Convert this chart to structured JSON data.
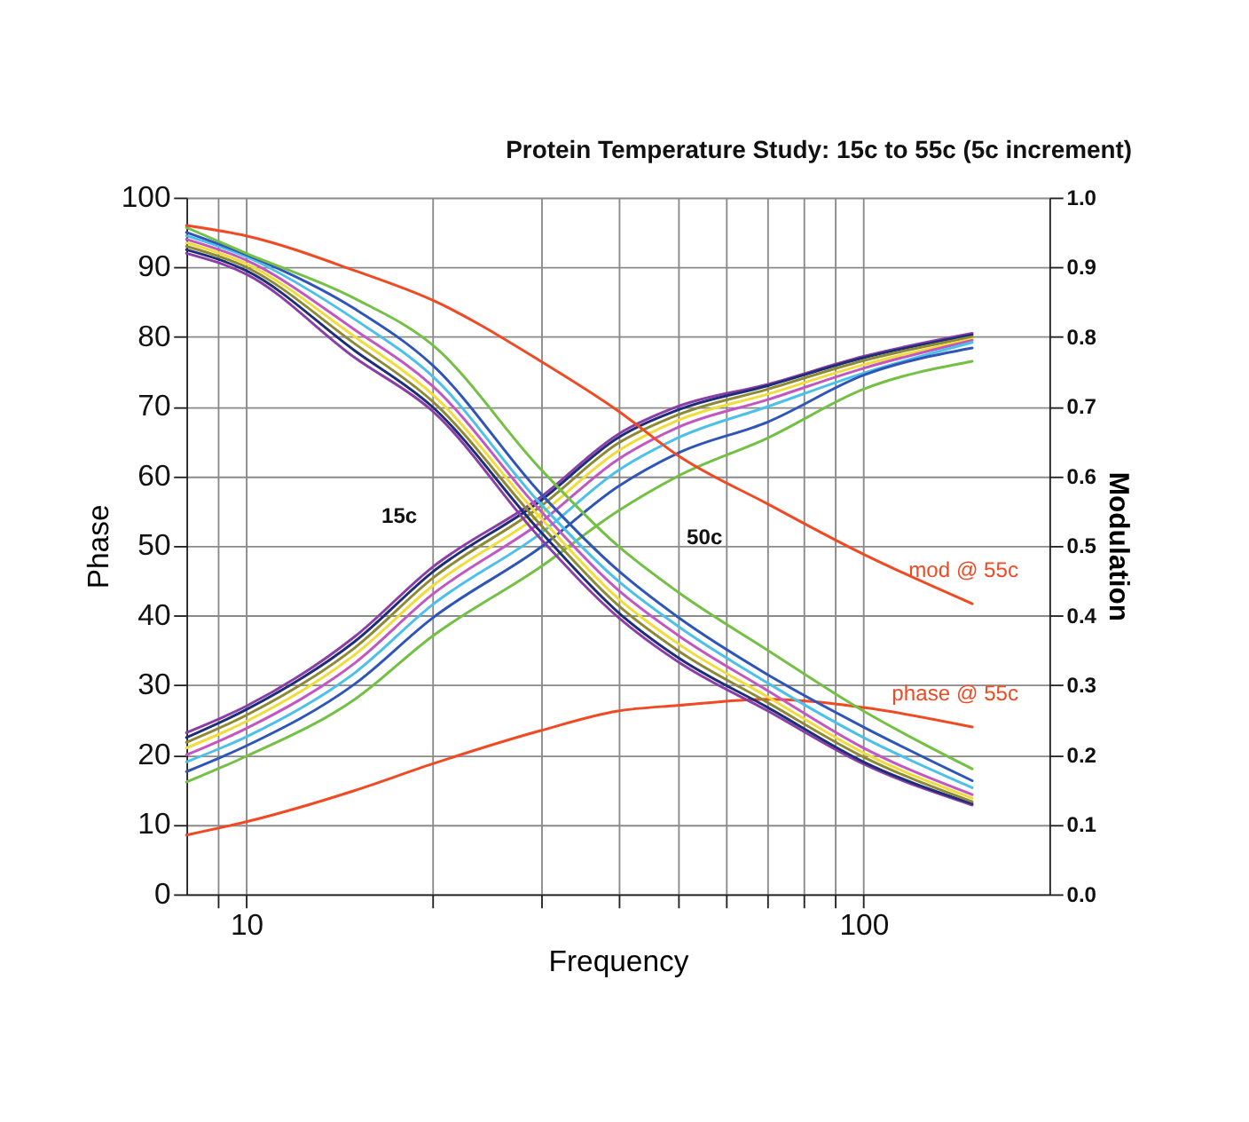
{
  "chart_data": {
    "type": "line",
    "title": "Protein Temperature Study: 15c to 55c (5c increment)",
    "xlabel": "Frequency",
    "ylabel": "Phase",
    "y2label": "Modulation",
    "x": [
      8,
      10,
      15,
      20,
      30,
      40,
      50,
      70,
      100,
      150
    ],
    "log": "x",
    "grid": true,
    "marker": "none",
    "line_style": "solid",
    "xlim": [
      8,
      200
    ],
    "xticks": [
      {
        "value": 9,
        "label": null
      },
      10,
      {
        "value": 20,
        "label": null
      },
      {
        "value": 30,
        "label": null
      },
      {
        "value": 40,
        "label": null
      },
      {
        "value": 50,
        "label": null
      },
      {
        "value": 60,
        "label": null
      },
      {
        "value": 70,
        "label": null
      },
      {
        "value": 80,
        "label": null
      },
      {
        "value": 90,
        "label": null
      },
      100
    ],
    "ylim": [
      0,
      100
    ],
    "yticks": [
      0,
      10,
      20,
      30,
      40,
      50,
      60,
      70,
      80,
      90,
      100
    ],
    "y2lim": [
      0,
      1
    ],
    "y2ticks": [
      {
        "value": 0,
        "label": "0.0"
      },
      0.1,
      0.2,
      0.3,
      0.4,
      0.5,
      0.6,
      0.7,
      0.8,
      0.9,
      {
        "value": 1,
        "label": "1.0"
      }
    ],
    "annotations": [
      "15c",
      "50c"
    ],
    "series": [
      {
        "color": "#8a3fa8",
        "values": [
          23.2,
          27,
          37,
          46.9,
          57,
          66,
          70,
          73.2,
          77.2,
          80.5
        ]
      },
      {
        "color": "#1e2d78",
        "values": [
          22.5,
          26.5,
          36.3,
          46.2,
          56.5,
          65.5,
          69.5,
          73,
          77,
          80.3
        ]
      },
      {
        "color": "#8c8a35",
        "values": [
          21.8,
          25.7,
          35.4,
          45.3,
          55.7,
          64.7,
          68.8,
          72.5,
          76.6,
          80
        ]
      },
      {
        "color": "#f0dc3a",
        "values": [
          21,
          24.8,
          34.4,
          44.2,
          54.6,
          63.6,
          68,
          71.8,
          76,
          79.7
        ]
      },
      {
        "color": "#c257c0",
        "values": [
          20,
          23.8,
          33.2,
          43,
          53.4,
          62.4,
          67,
          71,
          75.5,
          79.5
        ]
      },
      {
        "color": "#4cc0e8",
        "values": [
          19,
          22.6,
          31.8,
          41.5,
          51.8,
          60.8,
          65.5,
          70,
          74.8,
          79.2
        ]
      },
      {
        "color": "#2f55b8",
        "values": [
          17.6,
          21.3,
          30.2,
          39.6,
          49.8,
          58.5,
          63.3,
          67.8,
          74.5,
          78.4
        ]
      },
      {
        "color": "#74c044",
        "values": [
          16.1,
          19.8,
          28,
          37,
          47,
          55,
          60,
          65.5,
          72.5,
          76.5
        ]
      },
      {
        "color": "#8a3fa8",
        "axis": "y2",
        "values": [
          0.92,
          0.89,
          0.77,
          0.694,
          0.51,
          0.398,
          0.334,
          0.263,
          0.187,
          0.128
        ]
      },
      {
        "color": "#1e2d78",
        "axis": "y2",
        "values": [
          0.925,
          0.895,
          0.78,
          0.7,
          0.52,
          0.405,
          0.34,
          0.268,
          0.19,
          0.13
        ]
      },
      {
        "color": "#8c8a35",
        "axis": "y2",
        "values": [
          0.93,
          0.9,
          0.79,
          0.708,
          0.53,
          0.415,
          0.35,
          0.275,
          0.197,
          0.133
        ]
      },
      {
        "color": "#f0dc3a",
        "axis": "y2",
        "values": [
          0.935,
          0.905,
          0.8,
          0.718,
          0.54,
          0.425,
          0.36,
          0.283,
          0.203,
          0.138
        ]
      },
      {
        "color": "#c257c0",
        "axis": "y2",
        "values": [
          0.94,
          0.91,
          0.81,
          0.73,
          0.55,
          0.437,
          0.372,
          0.292,
          0.21,
          0.143
        ]
      },
      {
        "color": "#4cc0e8",
        "axis": "y2",
        "values": [
          0.945,
          0.915,
          0.825,
          0.744,
          0.56,
          0.45,
          0.385,
          0.303,
          0.225,
          0.153
        ]
      },
      {
        "color": "#2f55b8",
        "axis": "y2",
        "values": [
          0.95,
          0.918,
          0.84,
          0.76,
          0.575,
          0.465,
          0.398,
          0.315,
          0.24,
          0.163
        ]
      },
      {
        "color": "#74c044",
        "axis": "y2",
        "values": [
          0.957,
          0.92,
          0.855,
          0.789,
          0.61,
          0.5,
          0.434,
          0.35,
          0.263,
          0.18
        ]
      },
      {
        "name": "mod @ 55c",
        "color": "#f04a24",
        "axis": "y2",
        "values": [
          0.96,
          0.945,
          0.895,
          0.853,
          0.765,
          0.694,
          0.63,
          0.56,
          0.488,
          0.417
        ]
      },
      {
        "name": "phase @ 55c",
        "color": "#f04a24",
        "values": [
          8.5,
          10.4,
          14.9,
          18.7,
          23.5,
          26.3,
          27.1,
          28,
          26.8,
          24
        ]
      }
    ]
  }
}
